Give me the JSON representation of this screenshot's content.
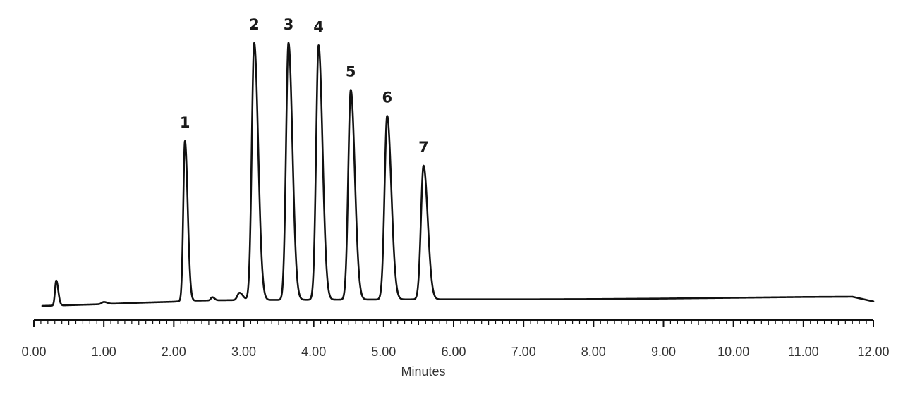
{
  "chart_data": {
    "type": "line",
    "title": "",
    "xlabel": "Minutes",
    "ylabel": "",
    "xlim": [
      0,
      12
    ],
    "ylim": [
      0,
      100
    ],
    "x_ticks": [
      "0.00",
      "1.00",
      "2.00",
      "3.00",
      "4.00",
      "5.00",
      "6.00",
      "7.00",
      "8.00",
      "9.00",
      "10.00",
      "11.00",
      "12.00"
    ],
    "x_tick_values": [
      0,
      1,
      2,
      3,
      4,
      5,
      6,
      7,
      8,
      9,
      10,
      11,
      12
    ],
    "minor_tick_step": 0.1,
    "grid": false,
    "legend": "none",
    "trace_color": "#111111",
    "baseline": {
      "x": [
        0.12,
        0.5,
        1.0,
        1.5,
        2.0,
        2.1,
        2.3,
        2.5,
        2.8,
        3.5,
        4.5,
        5.5,
        6.0,
        7.0,
        8.0,
        9.0,
        10.0,
        11.0,
        11.7,
        12.0
      ],
      "y": [
        0.0,
        0.3,
        0.7,
        1.2,
        1.6,
        1.8,
        2.0,
        2.1,
        2.2,
        2.3,
        2.4,
        2.5,
        2.5,
        2.5,
        2.6,
        2.8,
        3.1,
        3.4,
        3.5,
        1.7
      ]
    },
    "peaks": [
      {
        "label": "",
        "rt": 0.32,
        "height": 9.5,
        "sigma": 0.018
      },
      {
        "label": "",
        "rt": 1.0,
        "height": 0.8,
        "sigma": 0.03
      },
      {
        "label": "1",
        "rt": 2.16,
        "height": 61,
        "sigma": 0.024
      },
      {
        "label": "",
        "rt": 2.55,
        "height": 1.2,
        "sigma": 0.02
      },
      {
        "label": "",
        "rt": 2.94,
        "height": 2.8,
        "sigma": 0.03
      },
      {
        "label": "2",
        "rt": 3.15,
        "height": 98,
        "sigma": 0.035
      },
      {
        "label": "3",
        "rt": 3.64,
        "height": 98,
        "sigma": 0.035
      },
      {
        "label": "4",
        "rt": 4.07,
        "height": 97,
        "sigma": 0.035
      },
      {
        "label": "5",
        "rt": 4.53,
        "height": 80,
        "sigma": 0.036
      },
      {
        "label": "6",
        "rt": 5.05,
        "height": 70,
        "sigma": 0.037
      },
      {
        "label": "7",
        "rt": 5.57,
        "height": 51,
        "sigma": 0.037
      }
    ],
    "peak_tailing": 1.6
  }
}
